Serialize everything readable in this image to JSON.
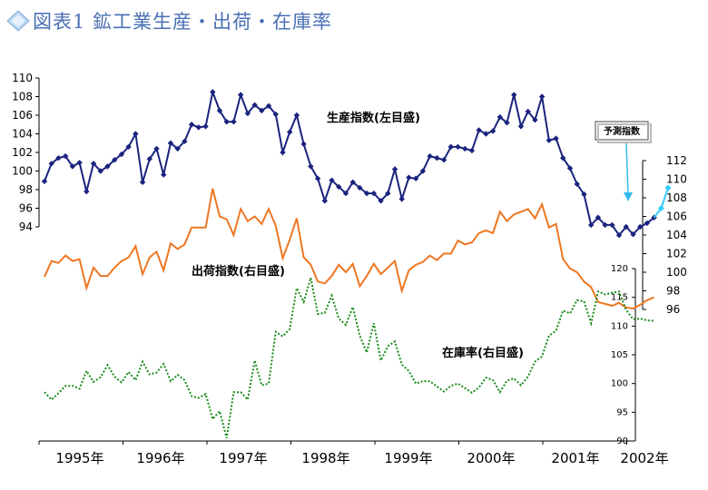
{
  "header": {
    "title": "図表1 鉱工業生産・出荷・在庫率",
    "bullet_icon": "diamond-bullet-icon",
    "bullet_color": "#8cc0e8"
  },
  "chart_data": {
    "type": "line",
    "title": "図表1 鉱工業生産・出荷・在庫率",
    "x_labels": [
      "1995年",
      "1996年",
      "1997年",
      "1998年",
      "1999年",
      "2000年",
      "2001年",
      "2002年"
    ],
    "x_unit": "month_index_from_1995_jan",
    "series": [
      {
        "name": "生産指数(左目盛)",
        "axis": "left",
        "color": "#1a237e",
        "style": "solid-with-diamond-markers",
        "start": "1995-01",
        "values": [
          98.9,
          100.8,
          101.4,
          101.6,
          100.5,
          100.9,
          97.8,
          100.8,
          100.0,
          100.5,
          101.2,
          101.8,
          102.6,
          104.0,
          98.8,
          101.3,
          102.4,
          99.6,
          103.0,
          102.4,
          103.2,
          105.0,
          104.7,
          104.8,
          108.5,
          106.5,
          105.3,
          105.3,
          108.2,
          106.2,
          107.1,
          106.5,
          107.0,
          106.1,
          102.0,
          104.2,
          106.0,
          102.9,
          100.5,
          99.2,
          96.8,
          99.0,
          98.3,
          97.6,
          98.8,
          98.2,
          97.6,
          97.6,
          96.8,
          97.6,
          100.2,
          97.0,
          99.3,
          99.2,
          100.0,
          101.6,
          101.4,
          101.2,
          102.6,
          102.6,
          102.4,
          102.2,
          104.4,
          104.0,
          104.3,
          105.8,
          105.2,
          108.2,
          104.8,
          106.4,
          105.5,
          108.0,
          103.3,
          103.5,
          101.4,
          100.3,
          98.6,
          97.5,
          94.2,
          95.0,
          94.2,
          94.2,
          93.1,
          94.0,
          93.2,
          94.0,
          94.4,
          95.0
        ],
        "forecast": {
          "name": "予測指数",
          "color": "#33ccff",
          "values": [
            95.0,
            96.0,
            98.2
          ]
        }
      },
      {
        "name": "出荷指数(右目盛)",
        "axis": "right_top",
        "color": "#ee7722",
        "style": "solid",
        "start": "1995-01",
        "values": [
          99.5,
          101.2,
          101.0,
          101.8,
          101.2,
          101.4,
          98.3,
          100.5,
          99.6,
          99.6,
          100.5,
          101.2,
          101.6,
          102.8,
          99.8,
          101.6,
          102.2,
          100.2,
          103.1,
          102.5,
          103.0,
          104.8,
          104.8,
          104.8,
          109.0,
          106.0,
          105.7,
          104.0,
          106.8,
          105.5,
          106.0,
          105.2,
          106.8,
          105.0,
          101.5,
          103.5,
          105.8,
          101.6,
          100.8,
          99.0,
          98.8,
          99.6,
          100.8,
          100.0,
          100.9,
          98.5,
          99.6,
          100.9,
          99.8,
          100.5,
          101.2,
          98.0,
          100.2,
          100.8,
          101.1,
          101.8,
          101.3,
          102.0,
          102.0,
          103.4,
          103.0,
          103.2,
          104.2,
          104.5,
          104.2,
          106.5,
          105.5,
          106.2,
          106.5,
          106.8,
          105.8,
          107.3,
          104.8,
          105.2,
          101.4,
          100.4,
          100.0,
          99.0,
          98.4,
          96.8,
          96.6,
          96.4,
          96.7,
          96.2,
          96.1,
          96.5,
          97.0,
          97.3
        ]
      },
      {
        "name": "在庫率(右目盛)",
        "axis": "right_bottom",
        "color": "#1a8a1a",
        "style": "dotted",
        "start": "1995-01",
        "values": [
          98.5,
          97.2,
          98.3,
          99.6,
          99.6,
          99.1,
          102.2,
          100.3,
          101.1,
          103.2,
          101.2,
          100.2,
          102.0,
          100.6,
          103.8,
          101.6,
          101.9,
          103.4,
          100.4,
          101.5,
          100.6,
          97.8,
          97.5,
          98.2,
          93.8,
          95.2,
          90.5,
          98.5,
          98.5,
          97.2,
          104.0,
          99.7,
          100.0,
          109.0,
          108.2,
          109.5,
          116.6,
          114.2,
          118.4,
          112.1,
          112.3,
          115.3,
          111.3,
          110.2,
          113.3,
          108.3,
          105.4,
          110.5,
          104.0,
          106.5,
          107.3,
          103.3,
          102.2,
          100.0,
          100.4,
          100.4,
          99.5,
          98.6,
          99.6,
          100.0,
          99.2,
          98.4,
          99.3,
          101.0,
          100.6,
          98.5,
          100.5,
          100.9,
          99.7,
          101.2,
          103.8,
          104.7,
          108.3,
          109.2,
          112.7,
          112.2,
          114.5,
          114.3,
          110.5,
          116.0,
          115.5,
          115.8,
          116.0,
          112.8,
          111.2,
          111.3,
          111.0,
          110.9
        ]
      }
    ],
    "y_left": {
      "ticks": [
        "94",
        "96",
        "98",
        "100",
        "102",
        "104",
        "106",
        "108",
        "110"
      ],
      "ylim": [
        94,
        110
      ]
    },
    "y_right_top": {
      "ticks": [
        "96",
        "98",
        "100",
        "102",
        "104",
        "106",
        "108",
        "110",
        "112"
      ],
      "ylim": [
        96,
        112
      ]
    },
    "y_right_bottom": {
      "ticks": [
        "90",
        "95",
        "100",
        "105",
        "110",
        "115",
        "120"
      ],
      "ylim": [
        90,
        120
      ]
    },
    "annotations": {
      "production_label": "生産指数(左目盛)",
      "shipment_label": "出荷指数(右目盛)",
      "inventory_label": "在庫率(右目盛)",
      "forecast_label": "予測指数"
    },
    "grid": false,
    "legend": "inline-labels"
  }
}
